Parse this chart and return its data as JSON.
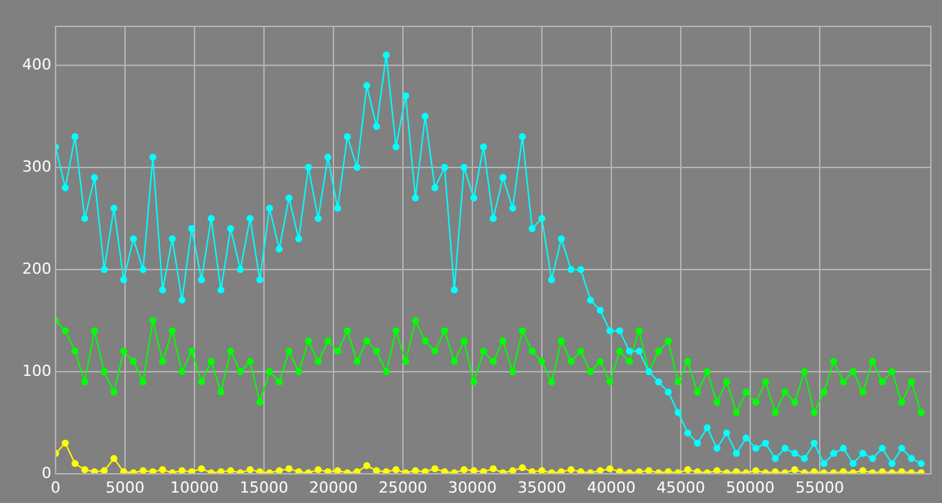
{
  "chart_data": {
    "type": "line",
    "marker": "circle",
    "grid": true,
    "legend": false,
    "x": [
      0,
      700,
      1400,
      2100,
      2800,
      3500,
      4200,
      4900,
      5600,
      6300,
      7000,
      7700,
      8400,
      9100,
      9800,
      10500,
      11200,
      11900,
      12600,
      13300,
      14000,
      14700,
      15400,
      16100,
      16800,
      17500,
      18200,
      18900,
      19600,
      20300,
      21000,
      21700,
      22400,
      23100,
      23800,
      24500,
      25200,
      25900,
      26600,
      27300,
      28000,
      28700,
      29400,
      30100,
      30800,
      31500,
      32200,
      32900,
      33600,
      34300,
      35000,
      35700,
      36400,
      37100,
      37800,
      38500,
      39200,
      39900,
      40600,
      41300,
      42000,
      42700,
      43400,
      44100,
      44800,
      45500,
      46200,
      46900,
      47600,
      48300,
      49000,
      49700,
      50400,
      51100,
      51800,
      52500,
      53200,
      53900,
      54600,
      55300,
      56000,
      56700,
      57400,
      58100,
      58800,
      59500,
      60200,
      60900,
      61600,
      62300
    ],
    "xlim": [
      0,
      63000
    ],
    "xticks": [
      0,
      5000,
      10000,
      15000,
      20000,
      25000,
      30000,
      35000,
      40000,
      45000,
      50000,
      55000
    ],
    "ylim": [
      0,
      438
    ],
    "yticks": [
      0,
      100,
      200,
      300,
      400
    ],
    "series": [
      {
        "color": "#00ffff",
        "values": [
          320,
          280,
          330,
          250,
          290,
          200,
          260,
          190,
          230,
          200,
          310,
          180,
          230,
          170,
          240,
          190,
          250,
          180,
          240,
          200,
          250,
          190,
          260,
          220,
          270,
          230,
          300,
          250,
          310,
          260,
          330,
          300,
          380,
          340,
          410,
          320,
          370,
          270,
          350,
          280,
          300,
          180,
          300,
          270,
          320,
          250,
          290,
          260,
          330,
          240,
          250,
          190,
          230,
          200,
          200,
          170,
          160,
          140,
          140,
          120,
          120,
          100,
          90,
          80,
          60,
          40,
          30,
          45,
          25,
          40,
          20,
          35,
          25,
          30,
          15,
          25,
          20,
          15,
          30,
          10,
          20,
          25,
          10,
          20,
          15,
          25,
          10,
          25,
          15,
          10
        ]
      },
      {
        "color": "#00ff00",
        "values": [
          150,
          140,
          120,
          90,
          140,
          100,
          80,
          120,
          110,
          90,
          150,
          110,
          140,
          100,
          120,
          90,
          110,
          80,
          120,
          100,
          110,
          70,
          100,
          90,
          120,
          100,
          130,
          110,
          130,
          120,
          140,
          110,
          130,
          120,
          100,
          140,
          110,
          150,
          130,
          120,
          140,
          110,
          130,
          90,
          120,
          110,
          130,
          100,
          140,
          120,
          110,
          90,
          130,
          110,
          120,
          100,
          110,
          90,
          120,
          110,
          140,
          100,
          120,
          130,
          90,
          110,
          80,
          100,
          70,
          90,
          60,
          80,
          70,
          90,
          60,
          80,
          70,
          100,
          60,
          80,
          110,
          90,
          100,
          80,
          110,
          90,
          100,
          70,
          90,
          60
        ]
      },
      {
        "color": "#ffff00",
        "values": [
          20,
          30,
          10,
          4,
          2,
          3,
          15,
          2,
          1,
          3,
          2,
          4,
          1,
          3,
          2,
          5,
          1,
          2,
          3,
          1,
          4,
          2,
          1,
          3,
          5,
          2,
          1,
          4,
          2,
          3,
          1,
          2,
          8,
          3,
          2,
          4,
          1,
          3,
          2,
          5,
          2,
          1,
          4,
          3,
          2,
          5,
          1,
          3,
          6,
          2,
          3,
          1,
          2,
          4,
          2,
          1,
          3,
          5,
          2,
          1,
          2,
          3,
          1,
          2,
          1,
          4,
          2,
          1,
          3,
          1,
          2,
          1,
          3,
          1,
          2,
          1,
          4,
          1,
          2,
          1,
          1,
          2,
          1,
          3,
          1,
          2,
          1,
          2,
          1,
          1
        ]
      }
    ]
  }
}
